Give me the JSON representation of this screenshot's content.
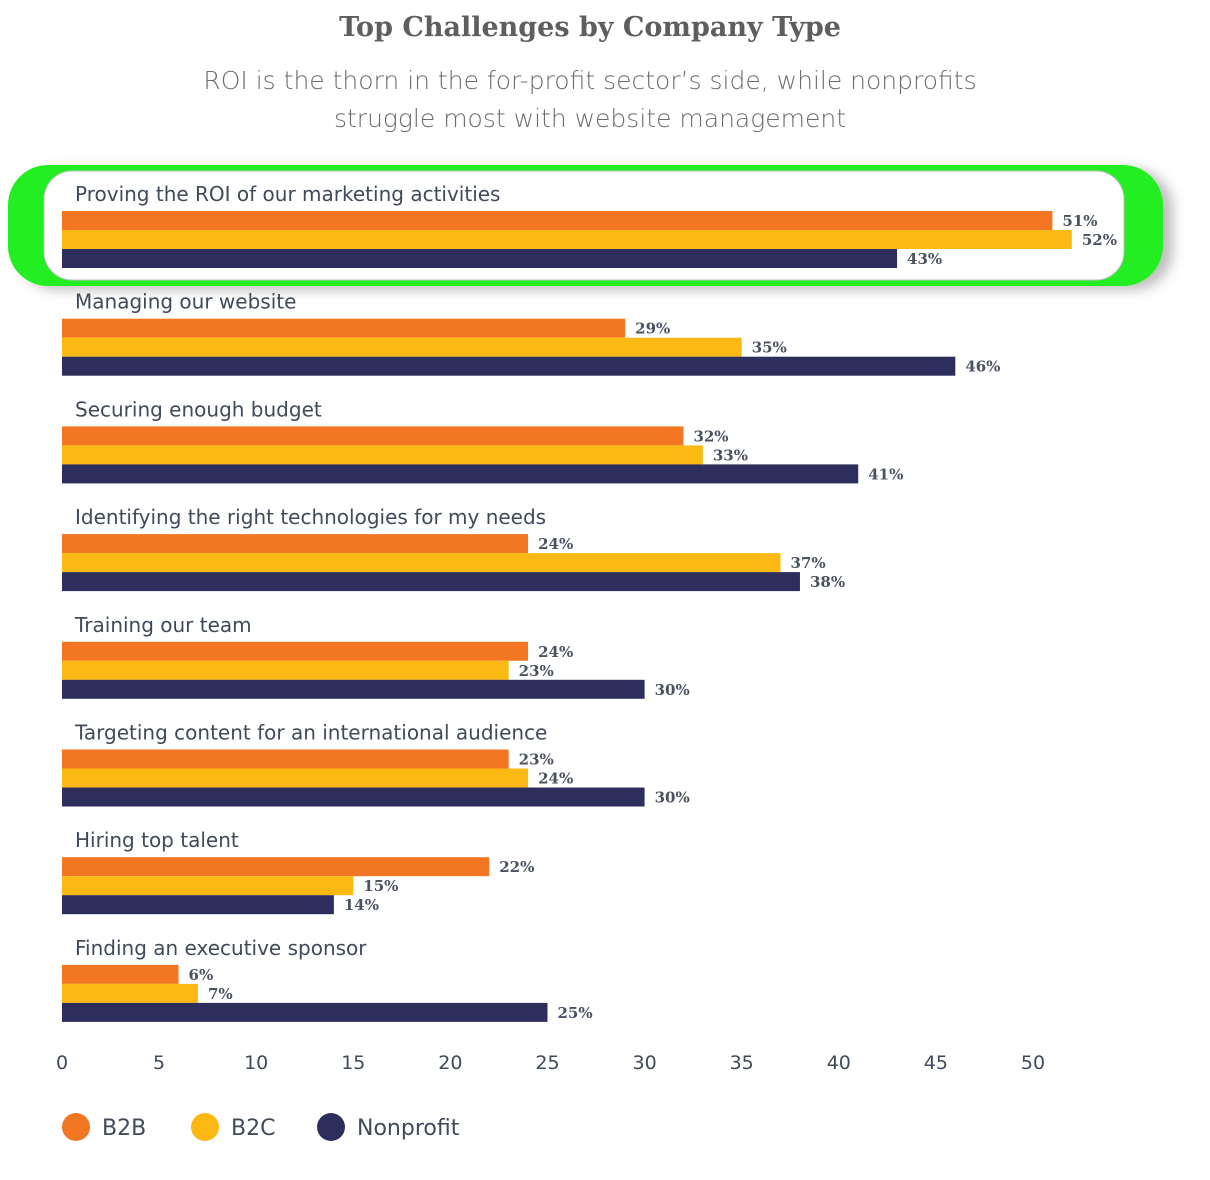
{
  "chart_data": {
    "type": "bar",
    "orientation": "horizontal",
    "title": "Top Challenges by Company Type",
    "subtitle_lines": [
      "ROI is the thorn in the for-profit sector’s side, while nonprofits",
      "struggle most with website management"
    ],
    "categories": [
      "Proving the ROI of our marketing activities",
      "Managing our website",
      "Securing enough budget",
      "Identifying the right technologies for my needs",
      "Training our team",
      "Targeting content for an international audience",
      "Hiring top talent",
      "Finding an executive sponsor"
    ],
    "series": [
      {
        "name": "B2B",
        "color": "#f37723",
        "values": [
          51,
          29,
          32,
          24,
          24,
          23,
          22,
          6
        ]
      },
      {
        "name": "B2C",
        "color": "#fdb913",
        "values": [
          52,
          35,
          33,
          37,
          23,
          24,
          15,
          7
        ]
      },
      {
        "name": "Nonprofit",
        "color": "#2e2e5c",
        "values": [
          43,
          46,
          41,
          38,
          30,
          30,
          14,
          25
        ]
      }
    ],
    "value_suffix": "%",
    "xlim": [
      0,
      50
    ],
    "xticks": [
      0,
      5,
      10,
      15,
      20,
      25,
      30,
      35,
      40,
      45,
      50
    ],
    "grid": false,
    "legend_placement": "bottom-left",
    "highlighted_category": "Proving the ROI of our marketing activities",
    "highlight_color": "#22ee22"
  }
}
